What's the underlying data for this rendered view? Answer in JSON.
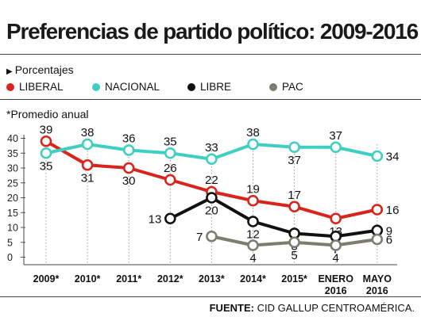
{
  "header": {
    "title": "Preferencias de partido político: 2009-2016"
  },
  "unit_label": "Porcentajes",
  "note": "*Promedio anual",
  "source": {
    "label": "FUENTE:",
    "text": "CID GALLUP CENTROAMÉRICA."
  },
  "colors": {
    "LIBERAL": "#d9241c",
    "NACIONAL": "#3fcfc2",
    "LIBRE": "#111111",
    "PAC": "#7e7c6e"
  },
  "chart_data": {
    "type": "line",
    "categories": [
      "2009*",
      "2010*",
      "2011*",
      "2012*",
      "2013*",
      "2014*",
      "2015*",
      "ENERO 2016",
      "MAYO 2016"
    ],
    "ylim": [
      0,
      40
    ],
    "yticks": [
      0,
      5,
      10,
      15,
      20,
      25,
      30,
      35,
      40
    ],
    "grid": false,
    "legend_position": "top",
    "series": [
      {
        "name": "LIBERAL",
        "values": [
          39,
          31,
          30,
          26,
          22,
          19,
          17,
          13,
          16
        ]
      },
      {
        "name": "NACIONAL",
        "values": [
          35,
          38,
          36,
          35,
          33,
          38,
          37,
          37,
          34
        ]
      },
      {
        "name": "LIBRE",
        "values": [
          null,
          null,
          null,
          13,
          20,
          12,
          8,
          7,
          9
        ]
      },
      {
        "name": "PAC",
        "values": [
          null,
          null,
          null,
          null,
          7,
          4,
          5,
          4,
          6
        ]
      }
    ]
  }
}
